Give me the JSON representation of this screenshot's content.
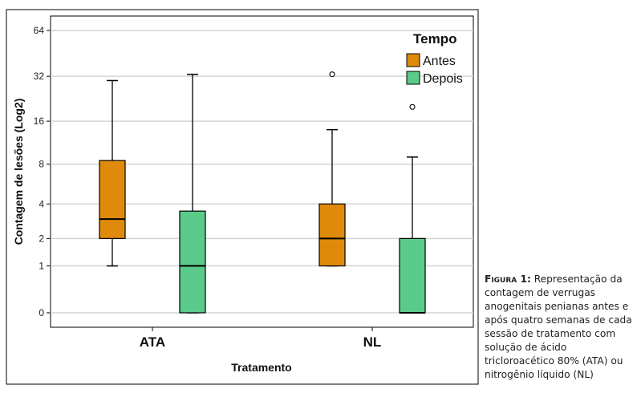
{
  "chart_data": {
    "type": "boxplot",
    "xlabel": "Tratamento",
    "ylabel": "Contagem de lesões (Log2)",
    "y_scale": "log2(x+1)",
    "yticks": [
      0,
      1,
      2,
      4,
      8,
      16,
      32,
      64
    ],
    "categories": [
      "ATA",
      "NL"
    ],
    "legend": {
      "title": "Tempo",
      "position": "top-right"
    },
    "grid": true,
    "series": [
      {
        "name": "Antes",
        "color": "#e08a0b",
        "boxes": [
          {
            "category": "ATA",
            "min": 1,
            "q1": 2,
            "median": 3,
            "q3": 8.5,
            "max": 30,
            "outliers": []
          },
          {
            "category": "NL",
            "min": 1,
            "q1": 1,
            "median": 2,
            "q3": 4,
            "max": 14,
            "outliers": [
              33
            ]
          }
        ]
      },
      {
        "name": "Depois",
        "color": "#5bcb8a",
        "boxes": [
          {
            "category": "ATA",
            "min": 0,
            "q1": 0,
            "median": 1,
            "q3": 3.5,
            "max": 33,
            "outliers": []
          },
          {
            "category": "NL",
            "min": 0,
            "q1": 0,
            "median": 0,
            "q3": 2,
            "max": 9,
            "outliers": [
              20
            ]
          }
        ]
      }
    ]
  },
  "caption": {
    "label": "Figura 1:",
    "text": "Representação da contagem de verrugas anogenitais penianas antes e após quatro semanas de cada sessão de tratamento com solução de ácido tricloroacético 80% (ATA) ou nitrogênio líquido (NL)"
  }
}
